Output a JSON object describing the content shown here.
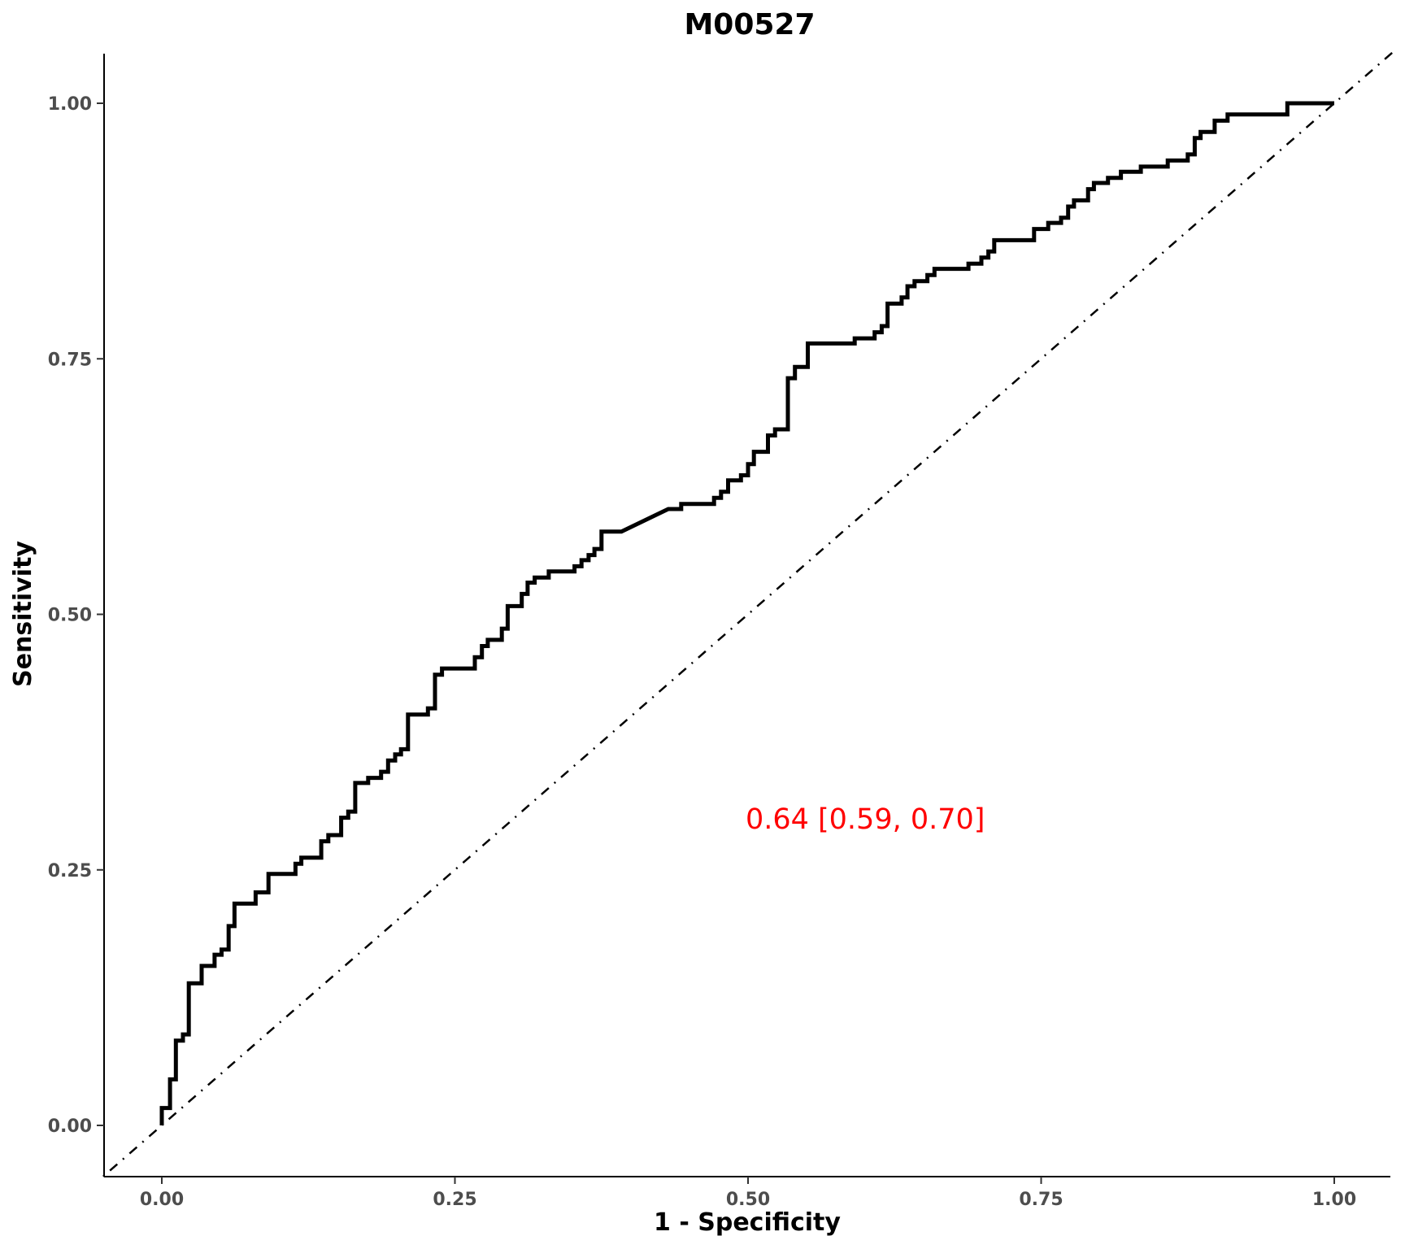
{
  "chart_data": {
    "type": "line",
    "title": "M00527",
    "xlabel": "1 - Specificity",
    "ylabel": "Sensitivity",
    "xlim": [
      -0.05,
      1.05
    ],
    "ylim": [
      -0.05,
      1.05
    ],
    "x_ticks": [
      0.0,
      0.25,
      0.5,
      0.75,
      1.0
    ],
    "x_tick_labels": [
      "0.00",
      "0.25",
      "0.50",
      "0.75",
      "1.00"
    ],
    "y_ticks": [
      0.0,
      0.25,
      0.5,
      0.75,
      1.0
    ],
    "y_tick_labels": [
      "0.00",
      "0.25",
      "0.50",
      "0.75",
      "1.00"
    ],
    "grid": false,
    "annotation": {
      "text": "0.64 [0.59, 0.70]",
      "x": 0.6,
      "y": 0.3,
      "color": "#ff0000"
    },
    "reference_line": {
      "x": [
        -0.05,
        1.05
      ],
      "y": [
        -0.05,
        1.05
      ],
      "style": "dash-dot",
      "color": "#000000"
    },
    "series": [
      {
        "color": "#000000",
        "points": [
          [
            0.0,
            0.0
          ],
          [
            0.0,
            0.017
          ],
          [
            0.007,
            0.017
          ],
          [
            0.007,
            0.045
          ],
          [
            0.012,
            0.045
          ],
          [
            0.012,
            0.083
          ],
          [
            0.018,
            0.083
          ],
          [
            0.018,
            0.089
          ],
          [
            0.023,
            0.089
          ],
          [
            0.023,
            0.139
          ],
          [
            0.034,
            0.139
          ],
          [
            0.034,
            0.156
          ],
          [
            0.045,
            0.156
          ],
          [
            0.045,
            0.167
          ],
          [
            0.051,
            0.167
          ],
          [
            0.051,
            0.172
          ],
          [
            0.057,
            0.172
          ],
          [
            0.057,
            0.195
          ],
          [
            0.062,
            0.195
          ],
          [
            0.062,
            0.217
          ],
          [
            0.08,
            0.217
          ],
          [
            0.08,
            0.228
          ],
          [
            0.091,
            0.228
          ],
          [
            0.091,
            0.246
          ],
          [
            0.114,
            0.246
          ],
          [
            0.114,
            0.256
          ],
          [
            0.119,
            0.256
          ],
          [
            0.119,
            0.262
          ],
          [
            0.136,
            0.262
          ],
          [
            0.136,
            0.278
          ],
          [
            0.142,
            0.278
          ],
          [
            0.142,
            0.284
          ],
          [
            0.153,
            0.284
          ],
          [
            0.153,
            0.301
          ],
          [
            0.159,
            0.301
          ],
          [
            0.159,
            0.307
          ],
          [
            0.165,
            0.307
          ],
          [
            0.165,
            0.335
          ],
          [
            0.176,
            0.335
          ],
          [
            0.176,
            0.34
          ],
          [
            0.187,
            0.34
          ],
          [
            0.187,
            0.346
          ],
          [
            0.193,
            0.346
          ],
          [
            0.193,
            0.357
          ],
          [
            0.199,
            0.357
          ],
          [
            0.199,
            0.363
          ],
          [
            0.204,
            0.363
          ],
          [
            0.204,
            0.368
          ],
          [
            0.21,
            0.368
          ],
          [
            0.21,
            0.402
          ],
          [
            0.227,
            0.402
          ],
          [
            0.227,
            0.408
          ],
          [
            0.233,
            0.408
          ],
          [
            0.233,
            0.441
          ],
          [
            0.239,
            0.441
          ],
          [
            0.239,
            0.447
          ],
          [
            0.267,
            0.447
          ],
          [
            0.267,
            0.458
          ],
          [
            0.273,
            0.458
          ],
          [
            0.273,
            0.469
          ],
          [
            0.278,
            0.469
          ],
          [
            0.278,
            0.475
          ],
          [
            0.29,
            0.475
          ],
          [
            0.29,
            0.486
          ],
          [
            0.295,
            0.486
          ],
          [
            0.295,
            0.508
          ],
          [
            0.307,
            0.508
          ],
          [
            0.307,
            0.52
          ],
          [
            0.312,
            0.52
          ],
          [
            0.312,
            0.531
          ],
          [
            0.318,
            0.531
          ],
          [
            0.318,
            0.536
          ],
          [
            0.33,
            0.536
          ],
          [
            0.33,
            0.542
          ],
          [
            0.352,
            0.542
          ],
          [
            0.352,
            0.547
          ],
          [
            0.358,
            0.547
          ],
          [
            0.358,
            0.553
          ],
          [
            0.364,
            0.553
          ],
          [
            0.364,
            0.558
          ],
          [
            0.369,
            0.558
          ],
          [
            0.369,
            0.564
          ],
          [
            0.375,
            0.564
          ],
          [
            0.375,
            0.581
          ],
          [
            0.392,
            0.581
          ],
          [
            0.432,
            0.603
          ],
          [
            0.443,
            0.603
          ],
          [
            0.443,
            0.608
          ],
          [
            0.471,
            0.608
          ],
          [
            0.471,
            0.614
          ],
          [
            0.477,
            0.614
          ],
          [
            0.477,
            0.62
          ],
          [
            0.483,
            0.62
          ],
          [
            0.483,
            0.631
          ],
          [
            0.494,
            0.631
          ],
          [
            0.494,
            0.636
          ],
          [
            0.5,
            0.636
          ],
          [
            0.5,
            0.647
          ],
          [
            0.505,
            0.647
          ],
          [
            0.505,
            0.659
          ],
          [
            0.517,
            0.659
          ],
          [
            0.517,
            0.675
          ],
          [
            0.523,
            0.675
          ],
          [
            0.523,
            0.681
          ],
          [
            0.534,
            0.681
          ],
          [
            0.534,
            0.731
          ],
          [
            0.54,
            0.731
          ],
          [
            0.54,
            0.742
          ],
          [
            0.551,
            0.742
          ],
          [
            0.551,
            0.765
          ],
          [
            0.591,
            0.765
          ],
          [
            0.591,
            0.77
          ],
          [
            0.608,
            0.77
          ],
          [
            0.608,
            0.776
          ],
          [
            0.614,
            0.776
          ],
          [
            0.614,
            0.782
          ],
          [
            0.619,
            0.782
          ],
          [
            0.619,
            0.804
          ],
          [
            0.631,
            0.804
          ],
          [
            0.631,
            0.81
          ],
          [
            0.636,
            0.81
          ],
          [
            0.636,
            0.821
          ],
          [
            0.642,
            0.821
          ],
          [
            0.642,
            0.826
          ],
          [
            0.653,
            0.826
          ],
          [
            0.653,
            0.832
          ],
          [
            0.659,
            0.832
          ],
          [
            0.659,
            0.838
          ],
          [
            0.688,
            0.838
          ],
          [
            0.688,
            0.843
          ],
          [
            0.699,
            0.843
          ],
          [
            0.699,
            0.849
          ],
          [
            0.705,
            0.849
          ],
          [
            0.705,
            0.855
          ],
          [
            0.71,
            0.855
          ],
          [
            0.71,
            0.866
          ],
          [
            0.744,
            0.866
          ],
          [
            0.744,
            0.877
          ],
          [
            0.756,
            0.877
          ],
          [
            0.756,
            0.883
          ],
          [
            0.767,
            0.883
          ],
          [
            0.767,
            0.888
          ],
          [
            0.773,
            0.888
          ],
          [
            0.773,
            0.899
          ],
          [
            0.778,
            0.899
          ],
          [
            0.778,
            0.905
          ],
          [
            0.79,
            0.905
          ],
          [
            0.79,
            0.916
          ],
          [
            0.795,
            0.916
          ],
          [
            0.795,
            0.922
          ],
          [
            0.807,
            0.922
          ],
          [
            0.807,
            0.927
          ],
          [
            0.818,
            0.927
          ],
          [
            0.818,
            0.933
          ],
          [
            0.835,
            0.933
          ],
          [
            0.835,
            0.938
          ],
          [
            0.858,
            0.938
          ],
          [
            0.858,
            0.944
          ],
          [
            0.875,
            0.944
          ],
          [
            0.875,
            0.95
          ],
          [
            0.881,
            0.95
          ],
          [
            0.881,
            0.966
          ],
          [
            0.886,
            0.966
          ],
          [
            0.886,
            0.972
          ],
          [
            0.898,
            0.972
          ],
          [
            0.898,
            0.983
          ],
          [
            0.909,
            0.983
          ],
          [
            0.909,
            0.989
          ],
          [
            0.96,
            0.989
          ],
          [
            0.96,
            1.0
          ],
          [
            1.0,
            1.0
          ]
        ]
      }
    ]
  }
}
